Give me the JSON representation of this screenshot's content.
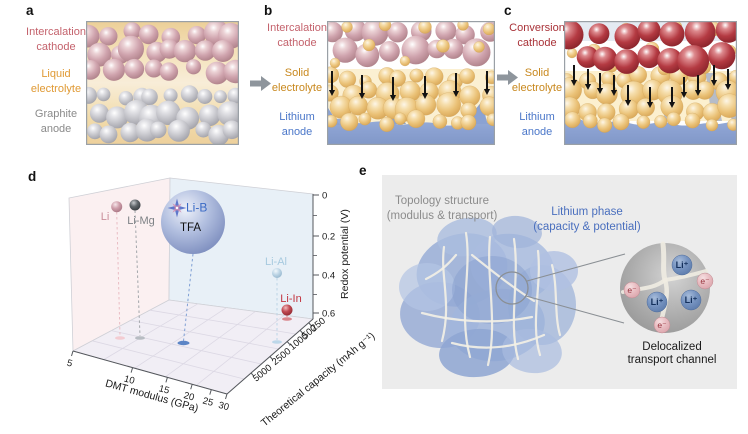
{
  "panels": {
    "a": {
      "label": "a",
      "layers": [
        {
          "line1": "Intercalation",
          "line2": "cathode",
          "color": "#c4626c"
        },
        {
          "line1": "Liquid",
          "line2": "electrolyte",
          "color": "#e09a35"
        },
        {
          "line1": "Graphite",
          "line2": "anode",
          "color": "#8a8a8a"
        }
      ]
    },
    "b": {
      "label": "b",
      "layers": [
        {
          "line1": "Intercalation",
          "line2": "cathode",
          "color": "#c4626c"
        },
        {
          "line1": "Solid",
          "line2": "electrolyte",
          "color": "#c8881e"
        },
        {
          "line1": "Lithium",
          "line2": "anode",
          "color": "#4b77c9"
        }
      ]
    },
    "c": {
      "label": "c",
      "layers": [
        {
          "line1": "Conversion",
          "line2": "cathode",
          "color": "#a93238"
        },
        {
          "line1": "Solid",
          "line2": "electrolyte",
          "color": "#c8881e"
        },
        {
          "line1": "Lithium",
          "line2": "anode",
          "color": "#4b77c9"
        }
      ]
    },
    "d": {
      "label": "d"
    },
    "e": {
      "label": "e",
      "topology_label": {
        "line1": "Topology structure",
        "line2": "(modulus & transport)",
        "color": "#8c8c8c"
      },
      "lithium_label": {
        "line1": "Lithium phase",
        "line2": "(capacity & potential)",
        "color": "#4a6fbe"
      },
      "caption": {
        "line1": "Delocalized",
        "line2": "transport channel",
        "color": "#1a1a1a"
      },
      "ion_label": "Li⁺",
      "electron_label": "e⁻",
      "ion_color": "#6d8cba",
      "electron_color": "#e7bcc1"
    }
  },
  "chart_data": {
    "type": "scatter",
    "projection": "3d",
    "title": "",
    "xlabel": "DMT modulus (GPa)",
    "ylabel": "Theoretical capacity (mAh g⁻¹)",
    "zlabel": "Redox potential (V)",
    "x_ticks": [
      5,
      10,
      15,
      20,
      25,
      30
    ],
    "y_ticks": [
      250,
      500,
      1000,
      2500,
      5000
    ],
    "z_ticks": [
      "0",
      "0.2",
      "0.4",
      "0.6"
    ],
    "x_scale": "log",
    "y_scale": "log",
    "z_range": [
      0,
      0.6
    ],
    "wall_colors": {
      "left": "#fbf0f1",
      "right": "#e8f0f7",
      "floor": "#f1eef5"
    },
    "points": [
      {
        "name": "Li",
        "dmt_modulus_gpa": 6.5,
        "theoretical_capacity_mah_g": 2300,
        "redox_potential_v": 0.05,
        "color": "#c795a0"
      },
      {
        "name": "Li-Mg",
        "dmt_modulus_gpa": 8,
        "theoretical_capacity_mah_g": 1900,
        "redox_potential_v": 0.05,
        "color": "#4e5257"
      },
      {
        "name": "Li-B",
        "dmt_modulus_gpa": 12,
        "theoretical_capacity_mah_g": 1550,
        "redox_potential_v": 0.12,
        "color": "#93a6d4",
        "annotation": "TFA",
        "emphasized": true
      },
      {
        "name": "Li-Al",
        "dmt_modulus_gpa": 27,
        "theoretical_capacity_mah_g": 700,
        "redox_potential_v": 0.4,
        "color": "#b9d2e4"
      },
      {
        "name": "Li-In",
        "dmt_modulus_gpa": 24,
        "theoretical_capacity_mah_g": 300,
        "redox_potential_v": 0.57,
        "color": "#b03540"
      }
    ]
  }
}
